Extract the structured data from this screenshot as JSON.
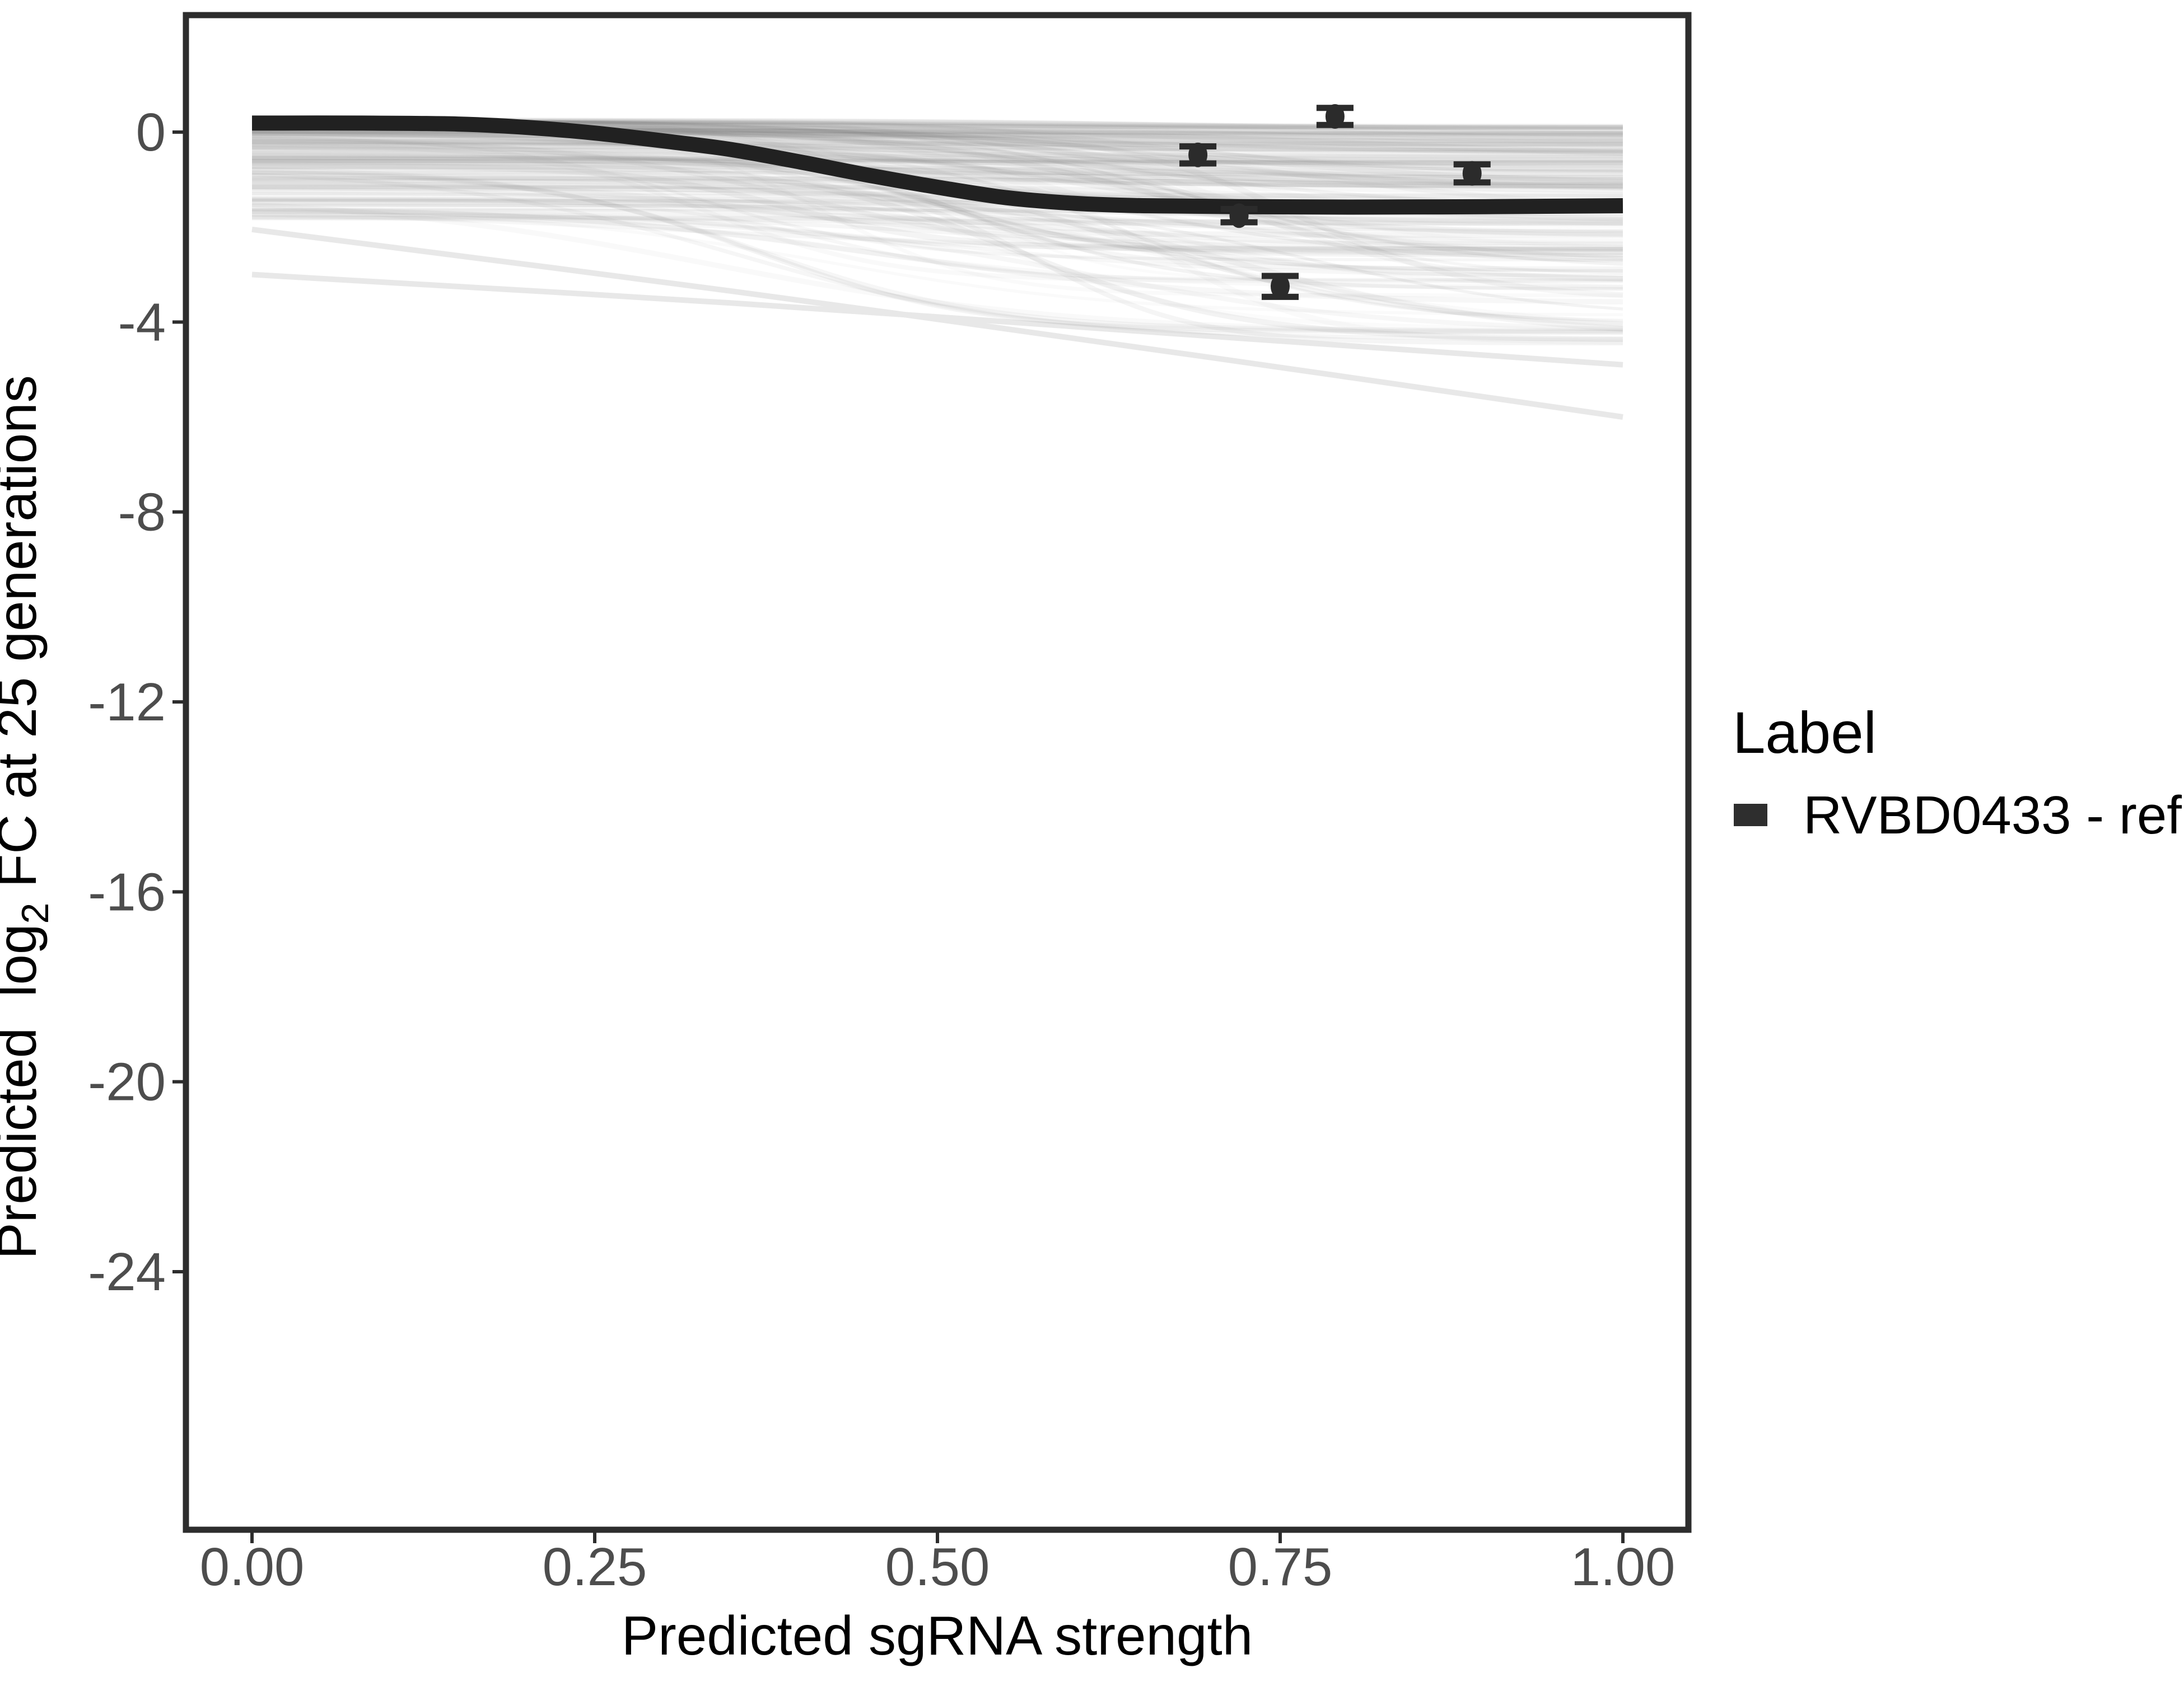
{
  "chart_data": {
    "type": "line",
    "title": "",
    "xlabel": "Predicted sgRNA strength",
    "ylabel": "Predicted log2 FC at 25 generations",
    "ylabel_parts": {
      "pre": "Predicted  log",
      "sub": "2",
      "post": " FC at 25 generations"
    },
    "x_ticks": [
      {
        "value": 0,
        "label": "0.00"
      },
      {
        "value": 0.25,
        "label": "0.25"
      },
      {
        "value": 0.5,
        "label": "0.50"
      },
      {
        "value": 0.75,
        "label": "0.75"
      },
      {
        "value": 1,
        "label": "1.00"
      }
    ],
    "y_ticks": [
      {
        "value": 0,
        "label": "0"
      },
      {
        "value": -4,
        "label": "-4"
      },
      {
        "value": -8,
        "label": "-8"
      },
      {
        "value": -12,
        "label": "-12"
      },
      {
        "value": -16,
        "label": "-16"
      },
      {
        "value": -20,
        "label": "-20"
      },
      {
        "value": -24,
        "label": "-24"
      }
    ],
    "x_range": [
      0,
      1
    ],
    "y_range": [
      -29.5,
      2.4
    ],
    "grid": false,
    "legend_position": "right",
    "series": [
      {
        "name": "RVBD0433 - ref",
        "role": "reference-curve",
        "color": "#212121",
        "stroke_width": 27,
        "points": [
          [
            0,
            0.19
          ],
          [
            0.08,
            0.19
          ],
          [
            0.15,
            0.17
          ],
          [
            0.2,
            0.1
          ],
          [
            0.25,
            -0.02
          ],
          [
            0.31,
            -0.22
          ],
          [
            0.35,
            -0.37
          ],
          [
            0.4,
            -0.63
          ],
          [
            0.45,
            -0.91
          ],
          [
            0.5,
            -1.16
          ],
          [
            0.55,
            -1.38
          ],
          [
            0.6,
            -1.5
          ],
          [
            0.65,
            -1.55
          ],
          [
            0.72,
            -1.57
          ],
          [
            0.8,
            -1.58
          ],
          [
            0.9,
            -1.57
          ],
          [
            1,
            -1.55
          ]
        ]
      }
    ],
    "data_points": {
      "color": "#2b2b2b",
      "cap_half_width": 0.0135,
      "points": [
        {
          "x": 0.69,
          "y": -0.48,
          "error": 0.18
        },
        {
          "x": 0.72,
          "y": -1.76,
          "error": 0.14
        },
        {
          "x": 0.75,
          "y": -3.25,
          "error": 0.22
        },
        {
          "x": 0.79,
          "y": 0.33,
          "error": 0.18
        },
        {
          "x": 0.89,
          "y": -0.87,
          "error": 0.19
        }
      ]
    },
    "posterior_ensemble": {
      "n_draws": 170,
      "seed": 20433,
      "color": "#757575",
      "stroke_width": 7,
      "opacity": 0.06,
      "start_top": 0.25,
      "start_spread": 2.1,
      "start_power": 1.7,
      "drop_min": 0.1,
      "drop_spread": 4.3,
      "drop_power": 2.8,
      "mid_min": 0.32,
      "mid_range": 0.5,
      "slope_min": 0.05,
      "slope_range": 0.09,
      "floor": -4.45
    },
    "outlier_draws": {
      "color": "#e8e8e8",
      "stroke_width": 10,
      "paths": [
        [
          [
            0,
            -2.05
          ],
          [
            0.35,
            -3.35
          ],
          [
            0.7,
            -4.75
          ],
          [
            1,
            -6.0
          ]
        ],
        [
          [
            0,
            -3.0
          ],
          [
            0.35,
            -3.6
          ],
          [
            0.7,
            -4.3
          ],
          [
            1,
            -4.9
          ]
        ]
      ]
    }
  },
  "legend": {
    "title": "Label",
    "entries": [
      {
        "label": "RVBD0433 - ref",
        "swatch_color": "#2e2e2e"
      }
    ]
  },
  "style": {
    "background": "#ffffff",
    "axis_color": "#2d2d2d",
    "tick_label_color": "#4d4d4d",
    "title_color": "#000000"
  }
}
